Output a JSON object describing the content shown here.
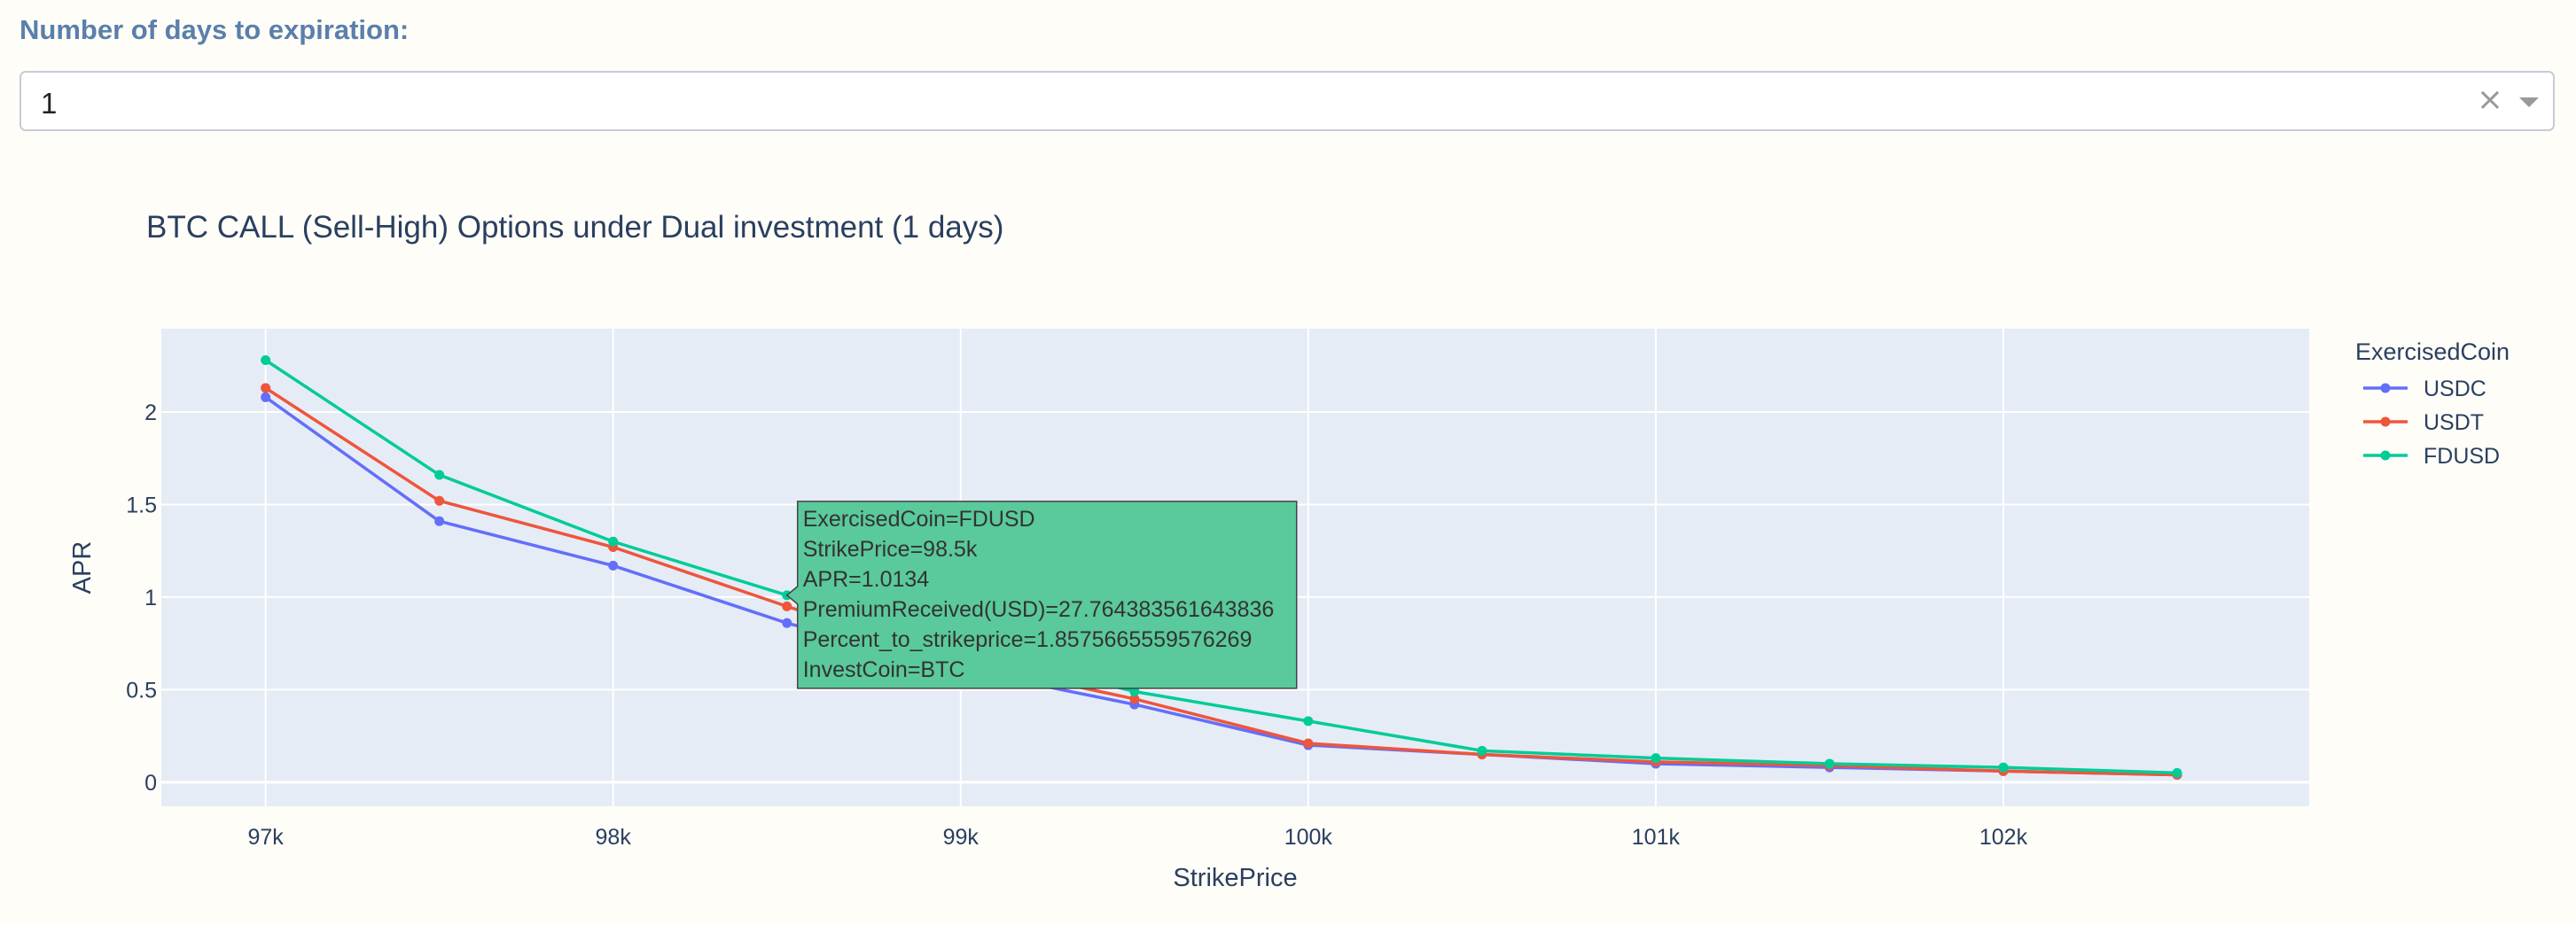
{
  "dropdown": {
    "label": "Number of days to expiration:",
    "value": "1"
  },
  "colors": {
    "plot_bg": "#e5ecf6",
    "grid": "#ffffff",
    "text": "#2a3f5f",
    "label_color": "#5a7fab"
  },
  "chart_data": {
    "type": "line",
    "title": "BTC CALL (Sell-High) Options under Dual investment (1 days)",
    "xlabel": "StrikePrice",
    "ylabel": "APR",
    "xlim": [
      96700,
      102880
    ],
    "ylim": [
      -0.13,
      2.45
    ],
    "x_ticks": [
      97000,
      98000,
      99000,
      100000,
      101000,
      102000
    ],
    "x_tick_labels": [
      "97k",
      "98k",
      "99k",
      "100k",
      "101k",
      "102k"
    ],
    "y_ticks": [
      0,
      0.5,
      1,
      1.5,
      2
    ],
    "y_tick_labels": [
      "0",
      "0.5",
      "1",
      "1.5",
      "2"
    ],
    "grid": true,
    "legend": {
      "title": "ExercisedCoin",
      "placement": "top-right"
    },
    "x": [
      97000,
      97500,
      98000,
      98500,
      99000,
      99500,
      100000,
      100500,
      101000,
      101500,
      102000,
      102500
    ],
    "series": [
      {
        "name": "USDC",
        "color": "#636efa",
        "values": [
          2.08,
          1.41,
          1.17,
          0.86,
          0.61,
          0.42,
          0.2,
          0.15,
          0.1,
          0.08,
          0.06,
          0.04
        ]
      },
      {
        "name": "USDT",
        "color": "#ef553b",
        "values": [
          2.13,
          1.52,
          1.27,
          0.95,
          0.65,
          0.45,
          0.21,
          0.15,
          0.11,
          0.09,
          0.06,
          0.04
        ]
      },
      {
        "name": "FDUSD",
        "color": "#00cc96",
        "values": [
          2.28,
          1.66,
          1.3,
          1.01,
          0.72,
          0.49,
          0.33,
          0.17,
          0.13,
          0.1,
          0.08,
          0.05
        ]
      }
    ],
    "hover": {
      "series_index": 2,
      "point_index": 3,
      "bg_color": "#5ac99b",
      "lines": [
        "ExercisedCoin=FDUSD",
        "StrikePrice=98.5k",
        "APR=1.0134",
        "PremiumReceived(USD)=27.764383561643836",
        "Percent_to_strikeprice=1.8575665559576269",
        "InvestCoin=BTC"
      ]
    }
  }
}
